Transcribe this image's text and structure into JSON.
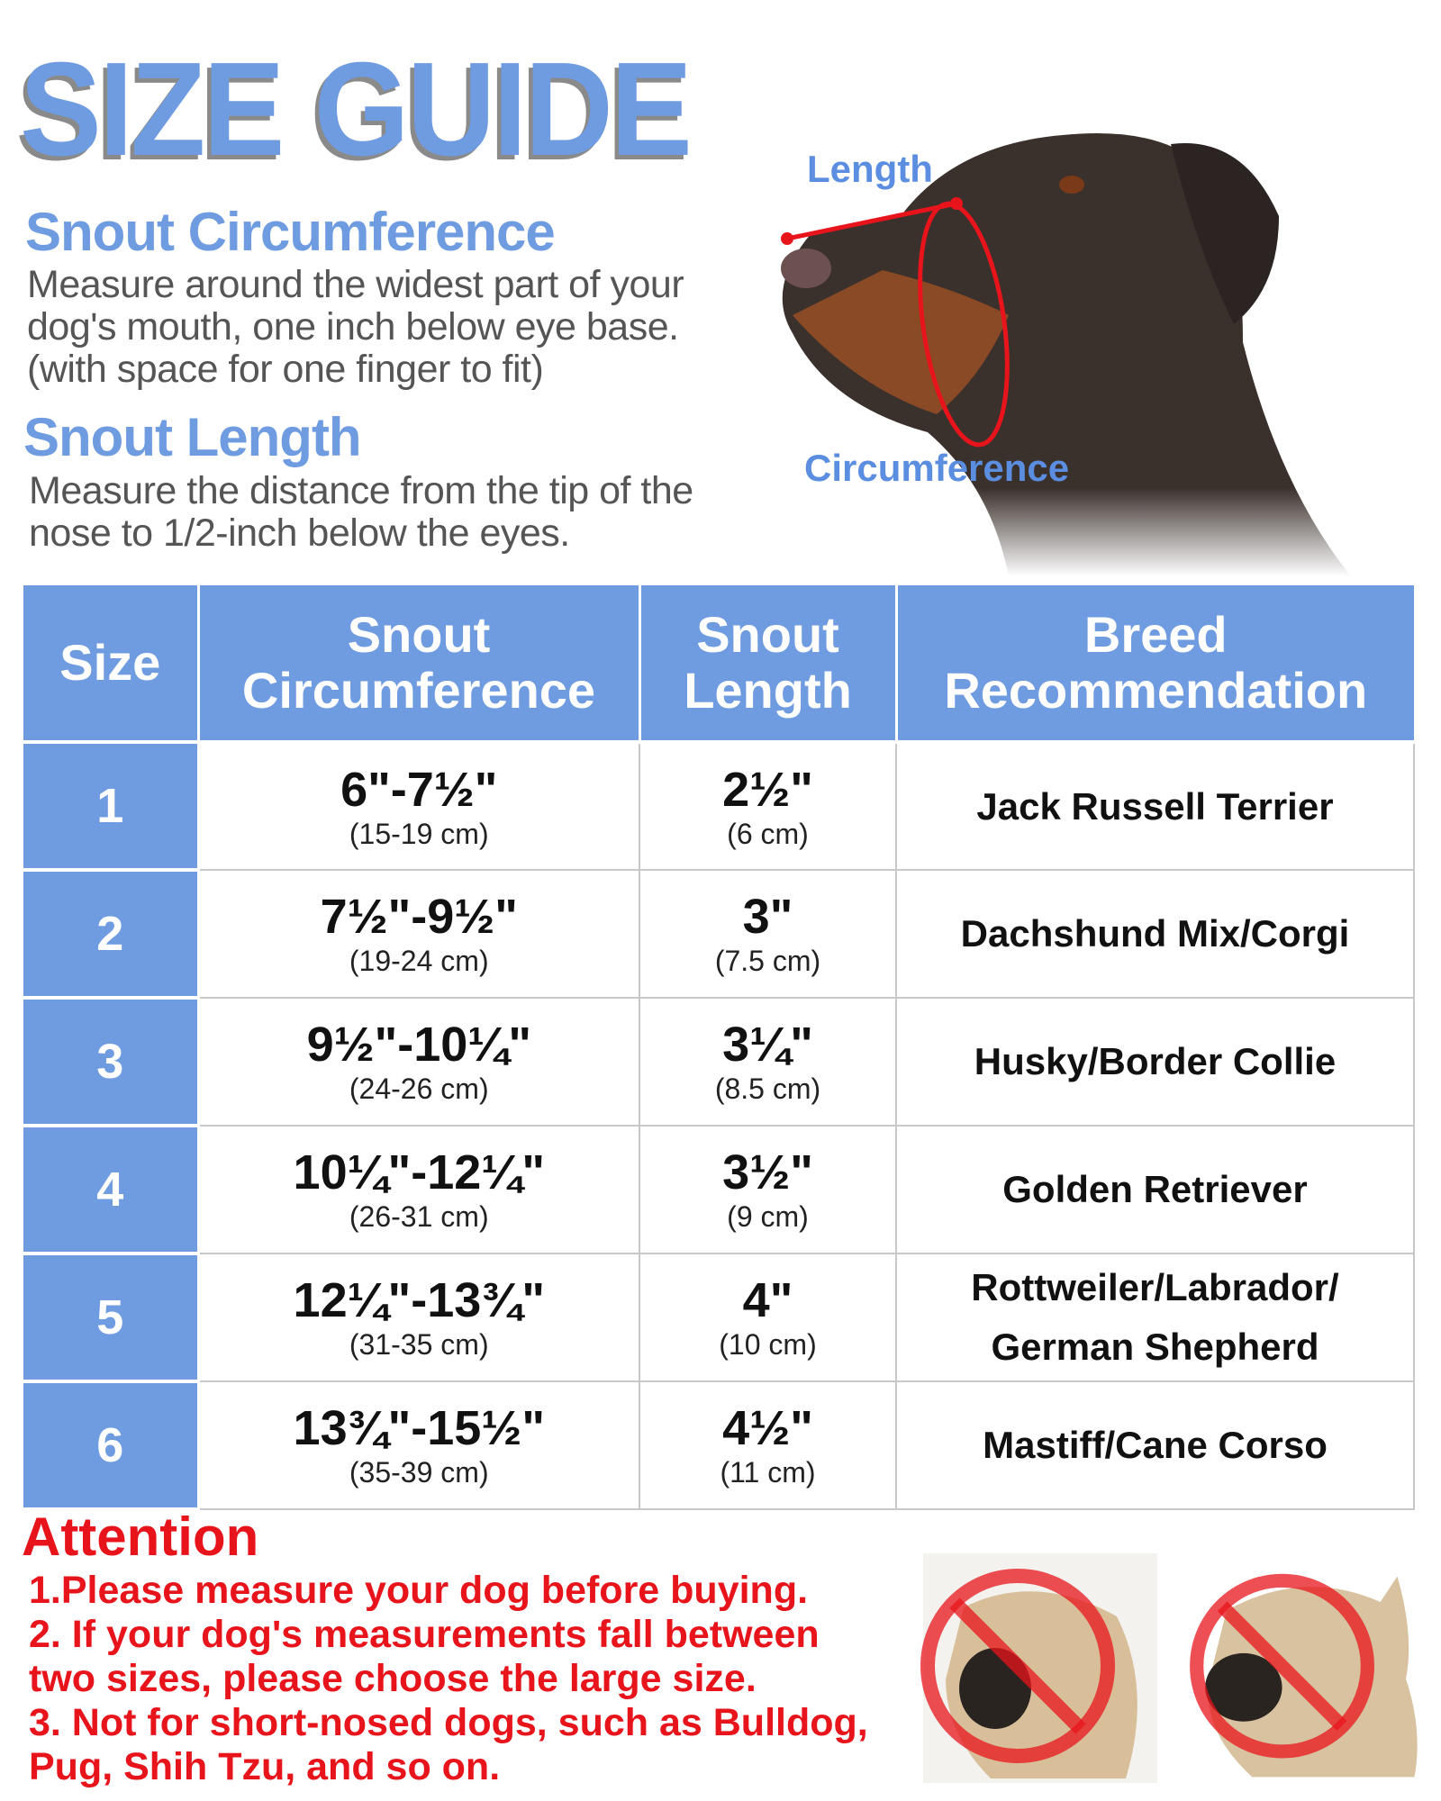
{
  "title": "SIZE GUIDE",
  "sections": [
    {
      "heading": "Snout Circumference",
      "lines": [
        "Measure around the widest part of your",
        "dog's mouth, one inch below eye base.",
        "(with space for one finger to fit)"
      ]
    },
    {
      "heading": "Snout Length",
      "lines": [
        "Measure the distance from the tip of the",
        "nose to 1/2-inch below the eyes."
      ]
    }
  ],
  "diagram": {
    "length_label": "Length",
    "circumference_label": "Circumference",
    "accent": "#e8141b"
  },
  "table": {
    "headers": [
      [
        "Size"
      ],
      [
        "Snout",
        "Circumference"
      ],
      [
        "Snout",
        "Length"
      ],
      [
        "Breed",
        "Recommendation"
      ]
    ],
    "rows": [
      {
        "size": "1",
        "circ": "6\"-7½\"",
        "circ_cm": "(15-19 cm)",
        "len": "2½\"",
        "len_cm": "(6 cm)",
        "breed": [
          "Jack Russell Terrier"
        ]
      },
      {
        "size": "2",
        "circ": "7½\"-9½\"",
        "circ_cm": "(19-24 cm)",
        "len": "3\"",
        "len_cm": "(7.5 cm)",
        "breed": [
          "Dachshund Mix/Corgi"
        ]
      },
      {
        "size": "3",
        "circ": "9½\"-10¼\"",
        "circ_cm": "(24-26 cm)",
        "len": "3¼\"",
        "len_cm": "(8.5 cm)",
        "breed": [
          "Husky/Border Collie"
        ]
      },
      {
        "size": "4",
        "circ": "10¼\"-12¼\"",
        "circ_cm": "(26-31 cm)",
        "len": "3½\"",
        "len_cm": "(9 cm)",
        "breed": [
          "Golden Retriever"
        ]
      },
      {
        "size": "5",
        "circ": "12¼\"-13¾\"",
        "circ_cm": "(31-35 cm)",
        "len": "4\"",
        "len_cm": "(10 cm)",
        "breed": [
          "Rottweiler/Labrador/",
          "German Shepherd"
        ]
      },
      {
        "size": "6",
        "circ": "13¾\"-15½\"",
        "circ_cm": "(35-39 cm)",
        "len": "4½\"",
        "len_cm": "(11 cm)",
        "breed": [
          "Mastiff/Cane Corso"
        ]
      }
    ]
  },
  "attention": {
    "heading": "Attention",
    "lines": [
      "1.Please measure your dog before buying.",
      "2. If your dog's measurements fall between",
      "two sizes, please choose the large size.",
      "3. Not for short-nosed dogs, such as Bulldog,",
      "Pug, Shih Tzu, and so on."
    ]
  },
  "colors": {
    "brand_blue": "#6f9be0",
    "warning_red": "#e8141b"
  }
}
